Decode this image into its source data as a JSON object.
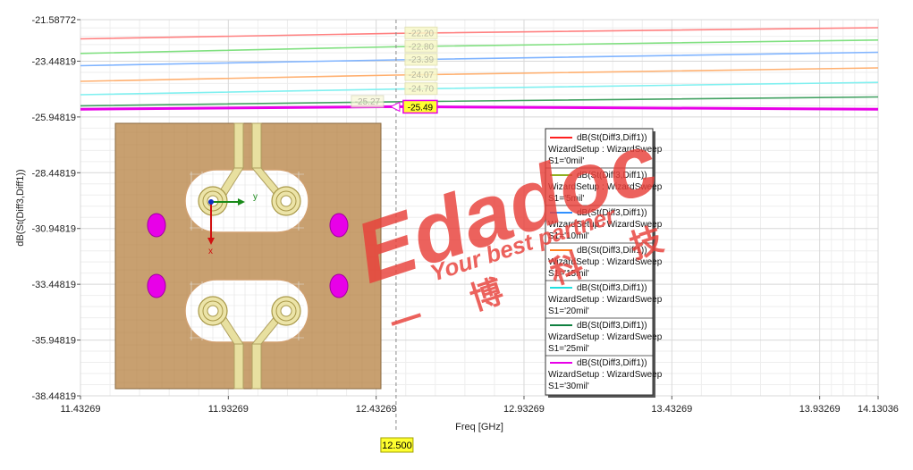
{
  "chart_data": {
    "type": "line",
    "title": "",
    "xlabel": "Freq [GHz]",
    "ylabel": "dB(St(Diff3,Diff1))",
    "xlim": [
      11.43269,
      14.13036
    ],
    "ylim": [
      -38.44819,
      -21.58772
    ],
    "x_ticks": [
      "11.43269",
      "11.93269",
      "12.43269",
      "12.93269",
      "13.43269",
      "13.93269",
      "14.13036"
    ],
    "y_ticks": [
      "-21.58772",
      "-23.44819",
      "-25.94819",
      "-28.44819",
      "-30.94819",
      "-33.44819",
      "-35.94819",
      "-38.44819"
    ],
    "grid": true,
    "cursor": {
      "x": 12.5,
      "label": "12.500"
    },
    "series": [
      {
        "name": "S1='0mil'",
        "color": "#ff8080",
        "x": [
          11.43269,
          12.5,
          14.13036
        ],
        "values": [
          -22.45,
          -22.2,
          -21.95
        ]
      },
      {
        "name": "S1='5mil'",
        "color": "#80e080",
        "x": [
          11.43269,
          12.5,
          14.13036
        ],
        "values": [
          -23.1,
          -22.8,
          -22.5
        ]
      },
      {
        "name": "S1='10mil'",
        "color": "#80b4ff",
        "x": [
          11.43269,
          12.5,
          14.13036
        ],
        "values": [
          -23.65,
          -23.39,
          -23.05
        ]
      },
      {
        "name": "S1='15mil'",
        "color": "#ffb070",
        "x": [
          11.43269,
          12.5,
          14.13036
        ],
        "values": [
          -24.35,
          -24.07,
          -23.75
        ]
      },
      {
        "name": "S1='20mil'",
        "color": "#80f0f0",
        "x": [
          11.43269,
          12.5,
          14.13036
        ],
        "values": [
          -24.95,
          -24.7,
          -24.4
        ]
      },
      {
        "name": "S1='25mil'",
        "color": "#40a060",
        "x": [
          11.43269,
          12.5,
          14.13036
        ],
        "values": [
          -25.45,
          -25.27,
          -25.05
        ]
      },
      {
        "name": "S1='30mil'",
        "color": "#e800e8",
        "x": [
          11.43269,
          12.5,
          14.13036
        ],
        "values": [
          -25.6,
          -25.49,
          -25.6
        ]
      }
    ],
    "markers": [
      {
        "label": "-22.20"
      },
      {
        "label": "-22.80"
      },
      {
        "label": "-23.39"
      },
      {
        "label": "-24.07"
      },
      {
        "label": "-24.70"
      },
      {
        "label": "-25.27"
      },
      {
        "label": "-25.49"
      }
    ],
    "legend": {
      "placement": "right-center",
      "entries": [
        {
          "line1": "dB(St(Diff3,Diff1))",
          "line2": "WizardSetup : WizardSweep",
          "line3": "S1='0mil'",
          "color": "#ff2020"
        },
        {
          "line1": "dB(St(Diff3,Diff1))",
          "line2": "WizardSetup : WizardSweep",
          "line3": "S1='5mil'",
          "color": "#90b020"
        },
        {
          "line1": "dB(St(Diff3,Diff1))",
          "line2": "WizardSetup : WizardSweep",
          "line3": "S1='10mil'",
          "color": "#3090ff"
        },
        {
          "line1": "dB(St(Diff3,Diff1))",
          "line2": "WizardSetup : WizardSweep",
          "line3": "S1='15mil'",
          "color": "#ff8020"
        },
        {
          "line1": "dB(St(Diff3,Diff1))",
          "line2": "WizardSetup : WizardSweep",
          "line3": "S1='20mil'",
          "color": "#20e0e0"
        },
        {
          "line1": "dB(St(Diff3,Diff1))",
          "line2": "WizardSetup : WizardSweep",
          "line3": "S1='25mil'",
          "color": "#108040"
        },
        {
          "line1": "dB(St(Diff3,Diff1))",
          "line2": "WizardSetup : WizardSweep",
          "line3": "S1='30mil'",
          "color": "#e800e8"
        }
      ]
    }
  },
  "inset": {
    "axis_y_label": "y",
    "axis_x_label": "x",
    "board_color": "#c8a070",
    "via_color": "#e800e8"
  },
  "watermark": {
    "logo": "Edadoc",
    "tagline": "Your best partner",
    "chinese": "一 博 科 技"
  }
}
